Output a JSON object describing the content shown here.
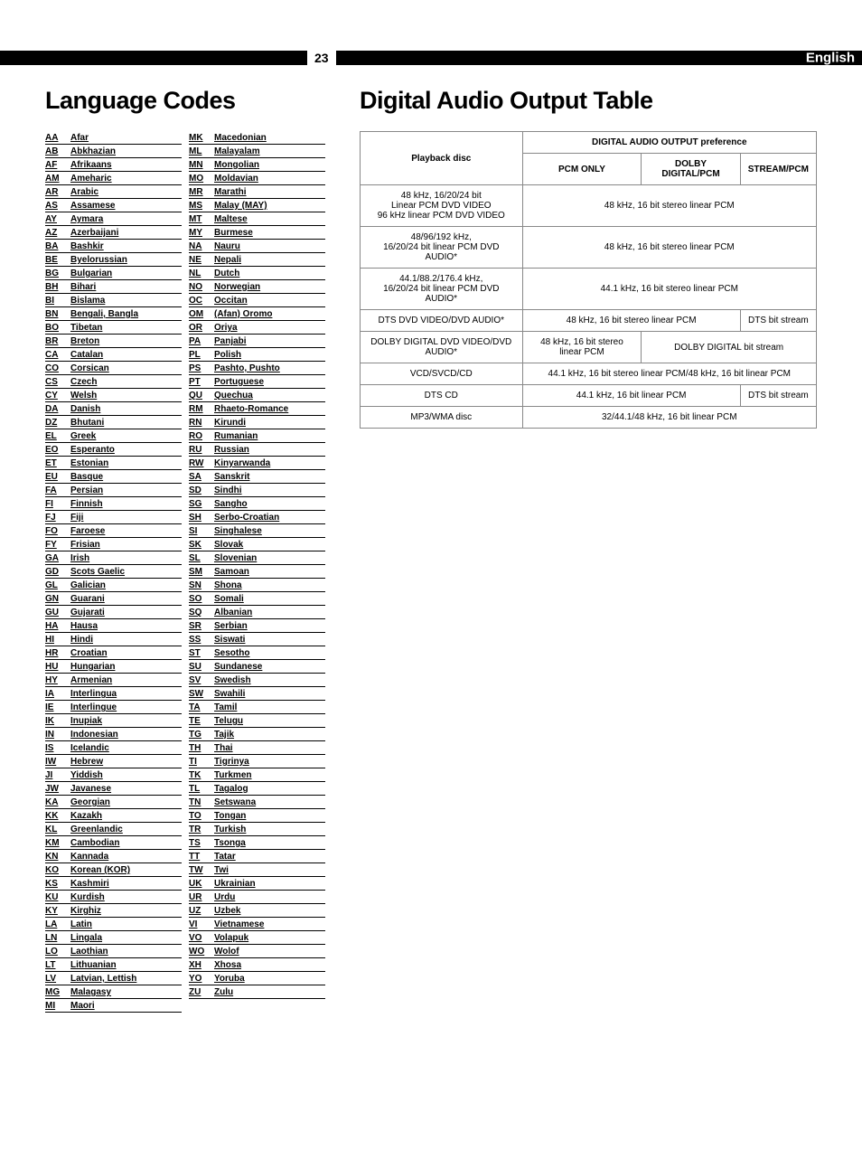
{
  "page_number": "23",
  "language_label": "English",
  "titles": {
    "left": "Language Codes",
    "right": "Digital Audio Output Table"
  },
  "lang_col1": [
    {
      "c": "AA",
      "n": "Afar"
    },
    {
      "c": "AB",
      "n": "Abkhazian"
    },
    {
      "c": "AF",
      "n": "Afrikaans"
    },
    {
      "c": "AM",
      "n": "Ameharic"
    },
    {
      "c": "AR",
      "n": "Arabic"
    },
    {
      "c": "AS",
      "n": "Assamese"
    },
    {
      "c": "AY",
      "n": "Aymara"
    },
    {
      "c": "AZ",
      "n": "Azerbaijani"
    },
    {
      "c": "BA",
      "n": "Bashkir"
    },
    {
      "c": "BE",
      "n": "Byelorussian"
    },
    {
      "c": "BG",
      "n": "Bulgarian"
    },
    {
      "c": "BH",
      "n": "Bihari"
    },
    {
      "c": "BI",
      "n": "Bislama"
    },
    {
      "c": "BN",
      "n": "Bengali, Bangla"
    },
    {
      "c": "BO",
      "n": "Tibetan"
    },
    {
      "c": "BR",
      "n": "Breton"
    },
    {
      "c": "CA",
      "n": "Catalan"
    },
    {
      "c": "CO",
      "n": "Corsican"
    },
    {
      "c": "CS",
      "n": "Czech"
    },
    {
      "c": "CY",
      "n": "Welsh"
    },
    {
      "c": "DA",
      "n": "Danish"
    },
    {
      "c": "DZ",
      "n": "Bhutani"
    },
    {
      "c": "EL",
      "n": "Greek"
    },
    {
      "c": "EO",
      "n": "Esperanto"
    },
    {
      "c": "ET",
      "n": "Estonian"
    },
    {
      "c": "EU",
      "n": "Basque"
    },
    {
      "c": "FA",
      "n": "Persian"
    },
    {
      "c": "FI",
      "n": "Finnish"
    },
    {
      "c": "FJ",
      "n": "Fiji"
    },
    {
      "c": "FO",
      "n": "Faroese"
    },
    {
      "c": "FY",
      "n": "Frisian"
    },
    {
      "c": "GA",
      "n": "Irish"
    },
    {
      "c": "GD",
      "n": "Scots Gaelic"
    },
    {
      "c": "GL",
      "n": "Galician"
    },
    {
      "c": "GN",
      "n": "Guarani"
    },
    {
      "c": "GU",
      "n": "Gujarati"
    },
    {
      "c": "HA",
      "n": "Hausa"
    },
    {
      "c": "HI",
      "n": "Hindi"
    },
    {
      "c": "HR",
      "n": "Croatian"
    },
    {
      "c": "HU",
      "n": "Hungarian"
    },
    {
      "c": "HY",
      "n": "Armenian"
    },
    {
      "c": "IA",
      "n": "Interlingua"
    },
    {
      "c": "IE",
      "n": "Interlingue"
    },
    {
      "c": "IK",
      "n": "Inupiak"
    },
    {
      "c": "IN",
      "n": "Indonesian"
    },
    {
      "c": "IS",
      "n": "Icelandic"
    },
    {
      "c": "IW",
      "n": "Hebrew"
    },
    {
      "c": "JI",
      "n": "Yiddish"
    },
    {
      "c": "JW",
      "n": "Javanese"
    },
    {
      "c": "KA",
      "n": "Georgian"
    },
    {
      "c": "KK",
      "n": "Kazakh"
    },
    {
      "c": "KL",
      "n": "Greenlandic"
    },
    {
      "c": "KM",
      "n": "Cambodian"
    },
    {
      "c": "KN",
      "n": "Kannada"
    },
    {
      "c": "KO",
      "n": "Korean (KOR)"
    },
    {
      "c": "KS",
      "n": "Kashmiri"
    },
    {
      "c": "KU",
      "n": "Kurdish"
    },
    {
      "c": "KY",
      "n": "Kirghiz"
    },
    {
      "c": "LA",
      "n": "Latin"
    },
    {
      "c": "LN",
      "n": "Lingala"
    },
    {
      "c": "LO",
      "n": "Laothian"
    },
    {
      "c": "LT",
      "n": "Lithuanian"
    },
    {
      "c": "LV",
      "n": "Latvian, Lettish"
    },
    {
      "c": "MG",
      "n": "Malagasy"
    },
    {
      "c": "MI",
      "n": "Maori"
    }
  ],
  "lang_col2": [
    {
      "c": "MK",
      "n": "Macedonian"
    },
    {
      "c": "ML",
      "n": "Malayalam"
    },
    {
      "c": "MN",
      "n": "Mongolian"
    },
    {
      "c": "MO",
      "n": "Moldavian"
    },
    {
      "c": "MR",
      "n": "Marathi"
    },
    {
      "c": "MS",
      "n": "Malay (MAY)"
    },
    {
      "c": "MT",
      "n": "Maltese"
    },
    {
      "c": "MY",
      "n": "Burmese"
    },
    {
      "c": "NA",
      "n": "Nauru"
    },
    {
      "c": "NE",
      "n": "Nepali"
    },
    {
      "c": "NL",
      "n": "Dutch"
    },
    {
      "c": "NO",
      "n": "Norwegian"
    },
    {
      "c": "OC",
      "n": "Occitan"
    },
    {
      "c": "OM",
      "n": "(Afan) Oromo"
    },
    {
      "c": "OR",
      "n": "Oriya"
    },
    {
      "c": "PA",
      "n": "Panjabi"
    },
    {
      "c": "PL",
      "n": "Polish"
    },
    {
      "c": "PS",
      "n": "Pashto, Pushto"
    },
    {
      "c": "PT",
      "n": "Portuguese"
    },
    {
      "c": "QU",
      "n": "Quechua"
    },
    {
      "c": "RM",
      "n": "Rhaeto-Romance"
    },
    {
      "c": "RN",
      "n": "Kirundi"
    },
    {
      "c": "RO",
      "n": "Rumanian"
    },
    {
      "c": "RU",
      "n": "Russian"
    },
    {
      "c": "RW",
      "n": "Kinyarwanda"
    },
    {
      "c": "SA",
      "n": "Sanskrit"
    },
    {
      "c": "SD",
      "n": "Sindhi"
    },
    {
      "c": "SG",
      "n": "Sangho"
    },
    {
      "c": "SH",
      "n": "Serbo-Croatian"
    },
    {
      "c": "SI",
      "n": "Singhalese"
    },
    {
      "c": "SK",
      "n": "Slovak"
    },
    {
      "c": "SL",
      "n": "Slovenian"
    },
    {
      "c": "SM",
      "n": "Samoan"
    },
    {
      "c": "SN",
      "n": "Shona"
    },
    {
      "c": "SO",
      "n": "Somali"
    },
    {
      "c": "SQ",
      "n": "Albanian"
    },
    {
      "c": "SR",
      "n": "Serbian"
    },
    {
      "c": "SS",
      "n": "Siswati"
    },
    {
      "c": "ST",
      "n": "Sesotho"
    },
    {
      "c": "SU",
      "n": "Sundanese"
    },
    {
      "c": "SV",
      "n": "Swedish"
    },
    {
      "c": "SW",
      "n": "Swahili"
    },
    {
      "c": "TA",
      "n": "Tamil"
    },
    {
      "c": "TE",
      "n": "Telugu"
    },
    {
      "c": "TG",
      "n": "Tajik"
    },
    {
      "c": "TH",
      "n": "Thai"
    },
    {
      "c": "TI",
      "n": "Tigrinya"
    },
    {
      "c": "TK",
      "n": "Turkmen"
    },
    {
      "c": "TL",
      "n": "Tagalog"
    },
    {
      "c": "TN",
      "n": "Setswana"
    },
    {
      "c": "TO",
      "n": "Tongan"
    },
    {
      "c": "TR",
      "n": "Turkish"
    },
    {
      "c": "TS",
      "n": "Tsonga"
    },
    {
      "c": "TT",
      "n": "Tatar"
    },
    {
      "c": "TW",
      "n": "Twi"
    },
    {
      "c": "UK",
      "n": "Ukrainian"
    },
    {
      "c": "UR",
      "n": "Urdu"
    },
    {
      "c": "UZ",
      "n": "Uzbek"
    },
    {
      "c": "VI",
      "n": "Vietnamese"
    },
    {
      "c": "VO",
      "n": "Volapuk"
    },
    {
      "c": "WO",
      "n": "Wolof"
    },
    {
      "c": "XH",
      "n": "Xhosa"
    },
    {
      "c": "YO",
      "n": "Yoruba"
    },
    {
      "c": "ZU",
      "n": "Zulu"
    }
  ],
  "dao": {
    "header_playback": "Playback disc",
    "header_pref": "DIGITAL AUDIO OUTPUT preference",
    "hcols": [
      "PCM ONLY",
      "DOLBY DIGITAL/PCM",
      "STREAM/PCM"
    ],
    "rows": [
      {
        "label": "48 kHz, 16/20/24 bit\nLinear PCM DVD VIDEO\n96 kHz linear PCM DVD VIDEO",
        "col": "48 kHz, 16 bit stereo linear PCM",
        "span": 3
      },
      {
        "label": "48/96/192 kHz,\n16/20/24 bit linear PCM DVD AUDIO*",
        "col": "48 kHz, 16 bit stereo linear PCM",
        "span": 3
      },
      {
        "label": "44.1/88.2/176.4 kHz,\n16/20/24 bit linear PCM DVD AUDIO*",
        "col": "44.1 kHz, 16 bit stereo linear PCM",
        "span": 3
      }
    ],
    "row4": {
      "label": "DTS DVD VIDEO/DVD AUDIO*",
      "c1": "48 kHz, 16 bit stereo linear PCM",
      "c1span": 2,
      "c3": "DTS bit stream"
    },
    "row5": {
      "label": "DOLBY DIGITAL DVD VIDEO/DVD AUDIO*",
      "c1": "48 kHz, 16 bit stereo linear PCM",
      "c2": "DOLBY DIGITAL bit stream",
      "c2span": 2
    },
    "row6": {
      "label": "VCD/SVCD/CD",
      "col": "44.1 kHz, 16 bit stereo linear PCM/48 kHz, 16 bit linear PCM",
      "span": 3
    },
    "row7": {
      "label": "DTS CD",
      "c1": "44.1 kHz, 16 bit linear PCM",
      "c1span": 2,
      "c3": "DTS bit stream"
    },
    "row8": {
      "label": "MP3/WMA disc",
      "col": "32/44.1/48 kHz, 16 bit linear PCM",
      "span": 3
    }
  }
}
